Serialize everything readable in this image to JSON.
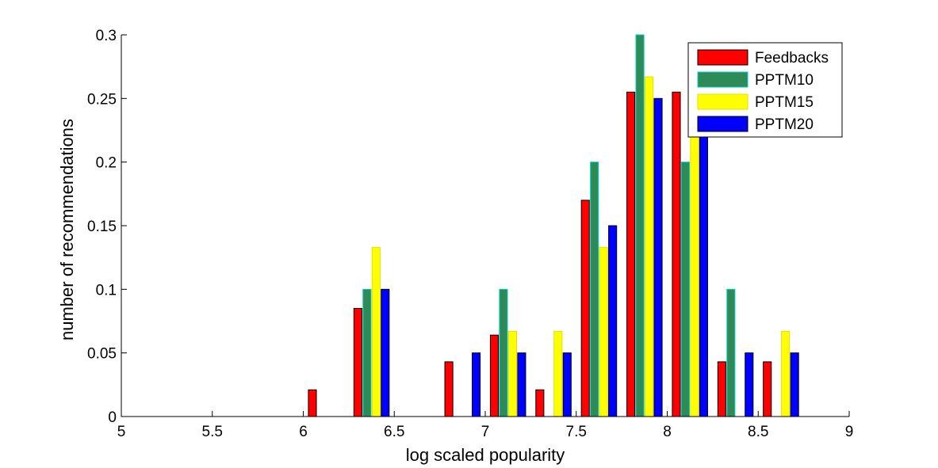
{
  "chart_data": {
    "type": "bar",
    "title": "",
    "xlabel": "log scaled popularity",
    "ylabel": "number of recommendations",
    "xlim": [
      5,
      9
    ],
    "ylim": [
      0,
      0.3
    ],
    "xticks": [
      "5",
      "5.5",
      "6",
      "6.5",
      "7",
      "7.5",
      "8",
      "8.5",
      "9"
    ],
    "yticks": [
      "0",
      "0.05",
      "0.1",
      "0.15",
      "0.2",
      "0.25",
      "0.3"
    ],
    "legend_position": "top-right",
    "grid": false,
    "categories": [
      5.125,
      5.375,
      5.625,
      5.875,
      6.125,
      6.375,
      6.625,
      6.875,
      7.125,
      7.375,
      7.625,
      7.875,
      8.125,
      8.375,
      8.625,
      8.875
    ],
    "series": [
      {
        "name": "Feedbacks",
        "color": "#ff0000",
        "edge": "#000000",
        "values": [
          0,
          0,
          0,
          0,
          0.021,
          0.085,
          0,
          0.043,
          0.064,
          0.021,
          0.17,
          0.255,
          0.255,
          0.043,
          0.043,
          0
        ]
      },
      {
        "name": "PPTM10",
        "color": "#2e8b57",
        "edge": "#00cccc",
        "values": [
          0,
          0,
          0,
          0,
          0,
          0.1,
          0,
          0,
          0.1,
          0,
          0.2,
          0.3,
          0.2,
          0.1,
          0,
          0
        ]
      },
      {
        "name": "PPTM15",
        "color": "#ffff00",
        "edge": "#e0e000",
        "values": [
          0,
          0,
          0,
          0,
          0,
          0.133,
          0,
          0,
          0.067,
          0.067,
          0.133,
          0.267,
          0.233,
          0,
          0.067,
          0
        ]
      },
      {
        "name": "PPTM20",
        "color": "#0000ff",
        "edge": "#000000",
        "values": [
          0,
          0,
          0,
          0,
          0,
          0.1,
          0,
          0.05,
          0.05,
          0.05,
          0.15,
          0.25,
          0.25,
          0.05,
          0.05,
          0
        ]
      }
    ]
  }
}
